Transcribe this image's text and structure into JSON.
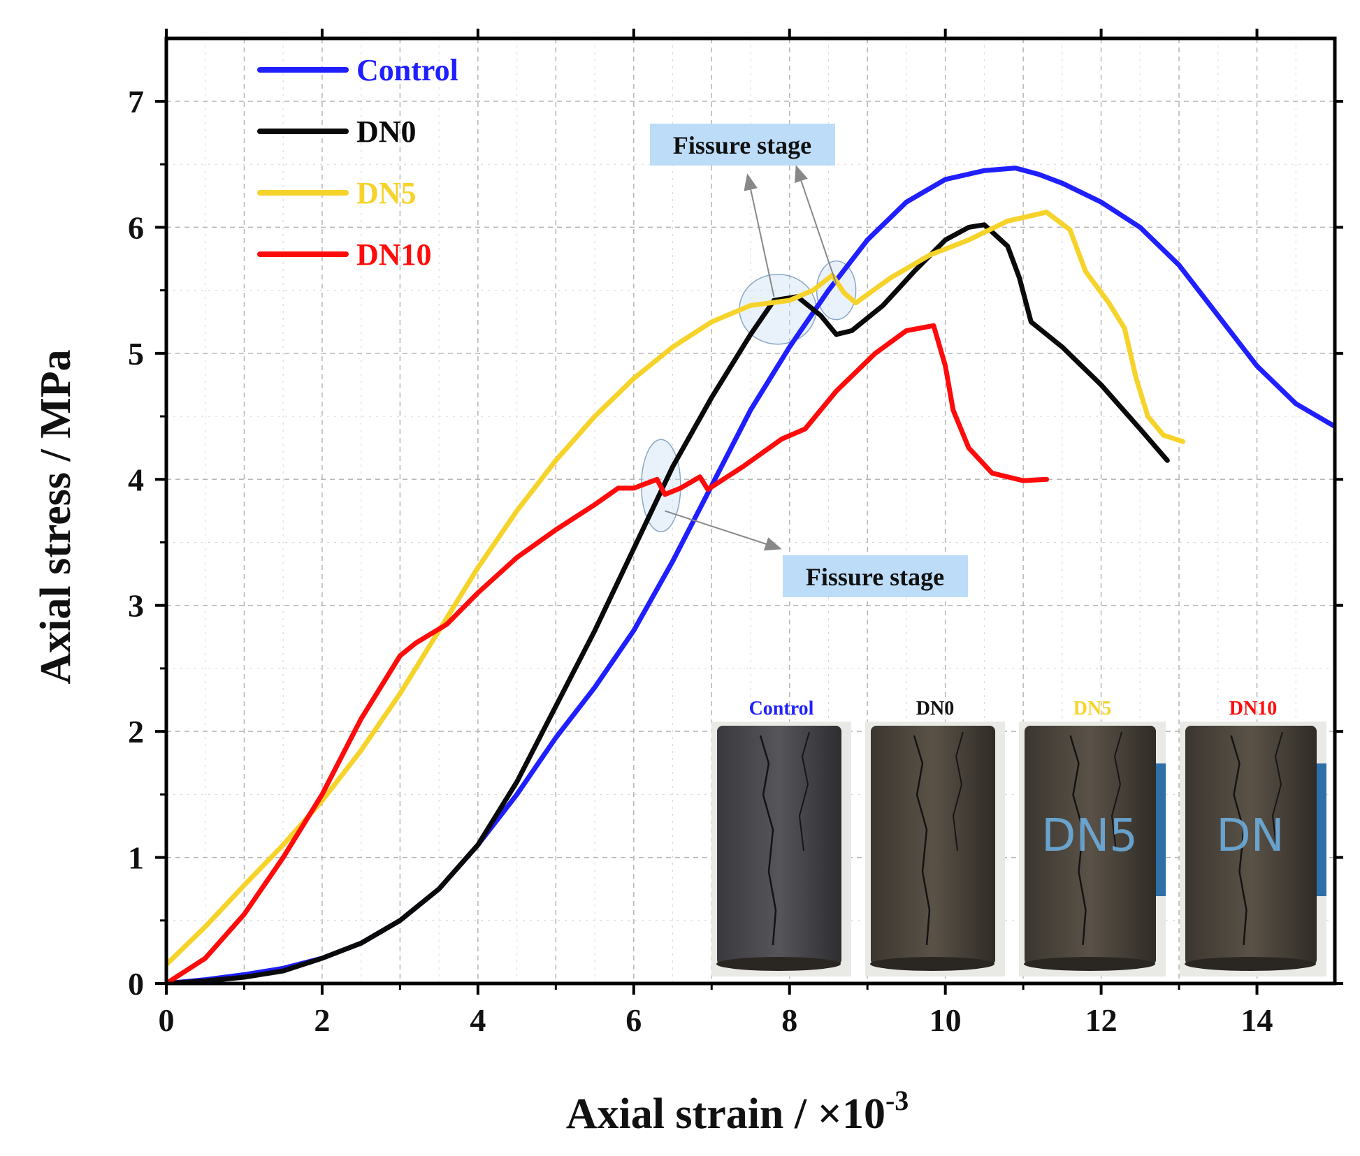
{
  "chart_data": {
    "type": "line",
    "xlabel": "Axial strain / ×10",
    "xlabel_superscript": "-3",
    "ylabel": "Axial stress / MPa",
    "xlim": [
      0,
      15
    ],
    "ylim": [
      0,
      7.5
    ],
    "xticks": [
      0,
      2,
      4,
      6,
      8,
      10,
      12,
      14
    ],
    "yticks": [
      0,
      1,
      2,
      3,
      4,
      5,
      6,
      7
    ],
    "grid": true,
    "legend_position": "top-left",
    "series": [
      {
        "name": "Control",
        "color": "#1f1fff",
        "points": [
          [
            0,
            0
          ],
          [
            0.5,
            0.03
          ],
          [
            1,
            0.07
          ],
          [
            1.5,
            0.12
          ],
          [
            2,
            0.2
          ],
          [
            2.5,
            0.32
          ],
          [
            3,
            0.5
          ],
          [
            3.5,
            0.75
          ],
          [
            4,
            1.1
          ],
          [
            4.5,
            1.5
          ],
          [
            5,
            1.95
          ],
          [
            5.5,
            2.35
          ],
          [
            6,
            2.8
          ],
          [
            6.5,
            3.35
          ],
          [
            7,
            3.95
          ],
          [
            7.5,
            4.55
          ],
          [
            8,
            5.05
          ],
          [
            8.5,
            5.5
          ],
          [
            9,
            5.9
          ],
          [
            9.5,
            6.2
          ],
          [
            10,
            6.38
          ],
          [
            10.5,
            6.45
          ],
          [
            10.9,
            6.47
          ],
          [
            11.2,
            6.42
          ],
          [
            11.5,
            6.35
          ],
          [
            12,
            6.2
          ],
          [
            12.5,
            6.0
          ],
          [
            13,
            5.7
          ],
          [
            13.5,
            5.3
          ],
          [
            14,
            4.9
          ],
          [
            14.5,
            4.6
          ],
          [
            15,
            4.42
          ]
        ]
      },
      {
        "name": "DN0",
        "color": "#0a0a0a",
        "points": [
          [
            0,
            0
          ],
          [
            0.5,
            0.02
          ],
          [
            1,
            0.05
          ],
          [
            1.5,
            0.1
          ],
          [
            2,
            0.2
          ],
          [
            2.5,
            0.32
          ],
          [
            3,
            0.5
          ],
          [
            3.5,
            0.75
          ],
          [
            4,
            1.1
          ],
          [
            4.5,
            1.6
          ],
          [
            5,
            2.2
          ],
          [
            5.5,
            2.8
          ],
          [
            6,
            3.45
          ],
          [
            6.5,
            4.1
          ],
          [
            7,
            4.65
          ],
          [
            7.5,
            5.15
          ],
          [
            7.8,
            5.42
          ],
          [
            8.1,
            5.45
          ],
          [
            8.4,
            5.3
          ],
          [
            8.6,
            5.15
          ],
          [
            8.8,
            5.18
          ],
          [
            9.2,
            5.38
          ],
          [
            9.6,
            5.65
          ],
          [
            10,
            5.9
          ],
          [
            10.3,
            6.0
          ],
          [
            10.5,
            6.02
          ],
          [
            10.8,
            5.85
          ],
          [
            10.95,
            5.6
          ],
          [
            11.1,
            5.25
          ],
          [
            11.5,
            5.05
          ],
          [
            12,
            4.75
          ],
          [
            12.5,
            4.4
          ],
          [
            12.85,
            4.15
          ]
        ]
      },
      {
        "name": "DN5",
        "color": "#f6d32a",
        "points": [
          [
            0,
            0.15
          ],
          [
            0.5,
            0.45
          ],
          [
            1,
            0.78
          ],
          [
            1.5,
            1.1
          ],
          [
            2,
            1.45
          ],
          [
            2.5,
            1.85
          ],
          [
            3,
            2.3
          ],
          [
            3.5,
            2.8
          ],
          [
            4,
            3.3
          ],
          [
            4.5,
            3.75
          ],
          [
            5,
            4.15
          ],
          [
            5.5,
            4.5
          ],
          [
            6,
            4.8
          ],
          [
            6.5,
            5.05
          ],
          [
            7,
            5.25
          ],
          [
            7.5,
            5.38
          ],
          [
            8,
            5.42
          ],
          [
            8.3,
            5.5
          ],
          [
            8.55,
            5.62
          ],
          [
            8.7,
            5.48
          ],
          [
            8.85,
            5.4
          ],
          [
            9.3,
            5.6
          ],
          [
            9.8,
            5.78
          ],
          [
            10.3,
            5.9
          ],
          [
            10.8,
            6.05
          ],
          [
            11.3,
            6.12
          ],
          [
            11.6,
            5.98
          ],
          [
            11.8,
            5.65
          ],
          [
            12.1,
            5.4
          ],
          [
            12.3,
            5.2
          ],
          [
            12.45,
            4.8
          ],
          [
            12.6,
            4.5
          ],
          [
            12.8,
            4.35
          ],
          [
            13.05,
            4.3
          ]
        ]
      },
      {
        "name": "DN10",
        "color": "#ff0b0b",
        "points": [
          [
            0,
            0
          ],
          [
            0.5,
            0.2
          ],
          [
            1,
            0.55
          ],
          [
            1.5,
            1.0
          ],
          [
            2,
            1.5
          ],
          [
            2.5,
            2.1
          ],
          [
            3,
            2.6
          ],
          [
            3.2,
            2.7
          ],
          [
            3.6,
            2.85
          ],
          [
            4,
            3.1
          ],
          [
            4.5,
            3.38
          ],
          [
            5,
            3.6
          ],
          [
            5.5,
            3.8
          ],
          [
            5.8,
            3.93
          ],
          [
            6,
            3.93
          ],
          [
            6.3,
            4.0
          ],
          [
            6.4,
            3.88
          ],
          [
            6.6,
            3.93
          ],
          [
            6.85,
            4.02
          ],
          [
            6.95,
            3.92
          ],
          [
            7.4,
            4.1
          ],
          [
            7.9,
            4.32
          ],
          [
            8.2,
            4.4
          ],
          [
            8.6,
            4.7
          ],
          [
            9.1,
            5.0
          ],
          [
            9.5,
            5.18
          ],
          [
            9.85,
            5.22
          ],
          [
            10,
            4.9
          ],
          [
            10.1,
            4.55
          ],
          [
            10.3,
            4.25
          ],
          [
            10.6,
            4.05
          ],
          [
            11,
            3.99
          ],
          [
            11.3,
            4.0
          ]
        ]
      }
    ],
    "annotations": [
      {
        "text": "Fissure stage",
        "targets": [
          [
            7.8,
            5.45
          ],
          [
            8.6,
            5.55
          ]
        ]
      },
      {
        "text": "Fissure stage",
        "targets": [
          [
            6.4,
            3.95
          ]
        ]
      }
    ],
    "inset_photos": [
      {
        "label": "Control",
        "color": "#1f1fff",
        "written_mark": ""
      },
      {
        "label": "DN0",
        "color": "#111111",
        "written_mark": ""
      },
      {
        "label": "DN5",
        "color": "#f6d32a",
        "written_mark": "DN5"
      },
      {
        "label": "DN10",
        "color": "#ff0b0b",
        "written_mark": "DN"
      }
    ]
  }
}
